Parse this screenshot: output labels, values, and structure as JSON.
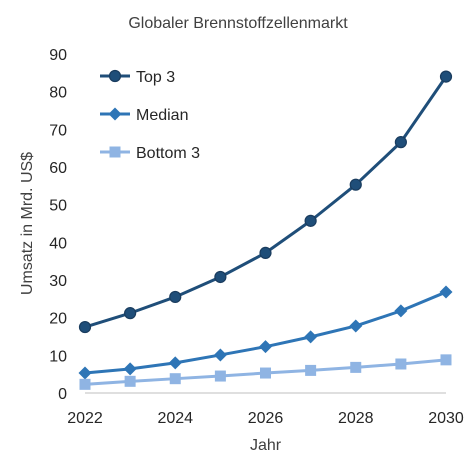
{
  "chart_data": {
    "type": "line",
    "title": "Globaler Brennstoffzellenmarkt",
    "xlabel": "Jahr",
    "ylabel": "Umsatz in Mrd. US$",
    "x": [
      2022,
      2023,
      2024,
      2025,
      2026,
      2027,
      2028,
      2029,
      2030
    ],
    "x_ticks": [
      2022,
      2024,
      2026,
      2028,
      2030
    ],
    "y_ticks": [
      0,
      10,
      20,
      30,
      40,
      50,
      60,
      70,
      80,
      90
    ],
    "xlim": [
      2022,
      2030
    ],
    "ylim": [
      0,
      90
    ],
    "grid": false,
    "legend_position": "top-left",
    "series": [
      {
        "name": "Top 3",
        "marker": "circle",
        "color": "#1f4e79",
        "values": [
          17.5,
          21.2,
          25.5,
          30.8,
          37.2,
          45.7,
          55.3,
          66.6,
          84.0
        ]
      },
      {
        "name": "Median",
        "marker": "diamond",
        "color": "#2e75b6",
        "values": [
          5.3,
          6.4,
          8.0,
          10.1,
          12.3,
          14.9,
          17.8,
          21.8,
          26.8
        ]
      },
      {
        "name": "Bottom 3",
        "marker": "square",
        "color": "#8fb4e3",
        "values": [
          2.3,
          3.1,
          3.8,
          4.5,
          5.3,
          6.0,
          6.8,
          7.7,
          8.8
        ]
      }
    ]
  }
}
